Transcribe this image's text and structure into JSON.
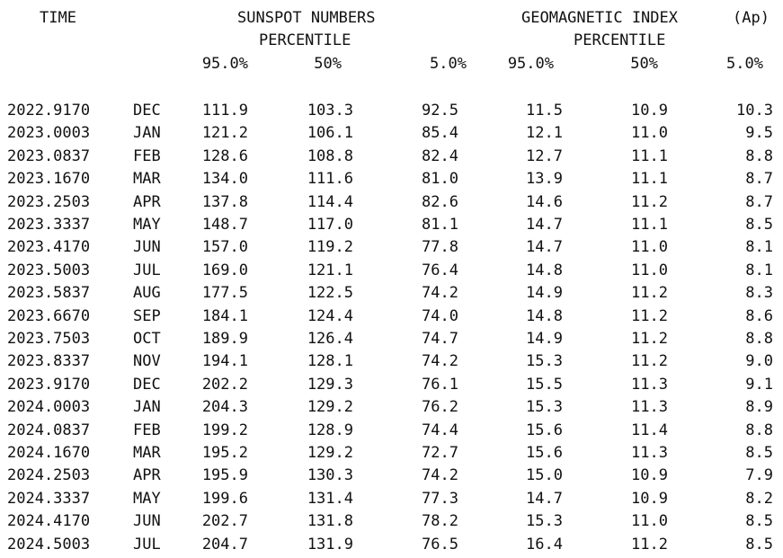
{
  "header": {
    "time": "TIME",
    "sunspot_title": "SUNSPOT NUMBERS",
    "sunspot_sub": "PERCENTILE",
    "geomag_title": "GEOMAGNETIC INDEX",
    "geomag_unit": "(Ap)",
    "geomag_sub": "PERCENTILE",
    "pct": [
      "95.0%",
      "50%",
      "5.0%",
      "95.0%",
      "50%",
      "5.0%"
    ]
  },
  "rows": [
    {
      "time": "2022.9170",
      "month": "DEC",
      "s95": "111.9",
      "s50": "103.3",
      "s5": "92.5",
      "g95": "11.5",
      "g50": "10.9",
      "g5": "10.3"
    },
    {
      "time": "2023.0003",
      "month": "JAN",
      "s95": "121.2",
      "s50": "106.1",
      "s5": "85.4",
      "g95": "12.1",
      "g50": "11.0",
      "g5": "9.5"
    },
    {
      "time": "2023.0837",
      "month": "FEB",
      "s95": "128.6",
      "s50": "108.8",
      "s5": "82.4",
      "g95": "12.7",
      "g50": "11.1",
      "g5": "8.8"
    },
    {
      "time": "2023.1670",
      "month": "MAR",
      "s95": "134.0",
      "s50": "111.6",
      "s5": "81.0",
      "g95": "13.9",
      "g50": "11.1",
      "g5": "8.7"
    },
    {
      "time": "2023.2503",
      "month": "APR",
      "s95": "137.8",
      "s50": "114.4",
      "s5": "82.6",
      "g95": "14.6",
      "g50": "11.2",
      "g5": "8.7"
    },
    {
      "time": "2023.3337",
      "month": "MAY",
      "s95": "148.7",
      "s50": "117.0",
      "s5": "81.1",
      "g95": "14.7",
      "g50": "11.1",
      "g5": "8.5"
    },
    {
      "time": "2023.4170",
      "month": "JUN",
      "s95": "157.0",
      "s50": "119.2",
      "s5": "77.8",
      "g95": "14.7",
      "g50": "11.0",
      "g5": "8.1"
    },
    {
      "time": "2023.5003",
      "month": "JUL",
      "s95": "169.0",
      "s50": "121.1",
      "s5": "76.4",
      "g95": "14.8",
      "g50": "11.0",
      "g5": "8.1"
    },
    {
      "time": "2023.5837",
      "month": "AUG",
      "s95": "177.5",
      "s50": "122.5",
      "s5": "74.2",
      "g95": "14.9",
      "g50": "11.2",
      "g5": "8.3"
    },
    {
      "time": "2023.6670",
      "month": "SEP",
      "s95": "184.1",
      "s50": "124.4",
      "s5": "74.0",
      "g95": "14.8",
      "g50": "11.2",
      "g5": "8.6"
    },
    {
      "time": "2023.7503",
      "month": "OCT",
      "s95": "189.9",
      "s50": "126.4",
      "s5": "74.7",
      "g95": "14.9",
      "g50": "11.2",
      "g5": "8.8"
    },
    {
      "time": "2023.8337",
      "month": "NOV",
      "s95": "194.1",
      "s50": "128.1",
      "s5": "74.2",
      "g95": "15.3",
      "g50": "11.2",
      "g5": "9.0"
    },
    {
      "time": "2023.9170",
      "month": "DEC",
      "s95": "202.2",
      "s50": "129.3",
      "s5": "76.1",
      "g95": "15.5",
      "g50": "11.3",
      "g5": "9.1"
    },
    {
      "time": "2024.0003",
      "month": "JAN",
      "s95": "204.3",
      "s50": "129.2",
      "s5": "76.2",
      "g95": "15.3",
      "g50": "11.3",
      "g5": "8.9"
    },
    {
      "time": "2024.0837",
      "month": "FEB",
      "s95": "199.2",
      "s50": "128.9",
      "s5": "74.4",
      "g95": "15.6",
      "g50": "11.4",
      "g5": "8.8"
    },
    {
      "time": "2024.1670",
      "month": "MAR",
      "s95": "195.2",
      "s50": "129.2",
      "s5": "72.7",
      "g95": "15.6",
      "g50": "11.3",
      "g5": "8.5"
    },
    {
      "time": "2024.2503",
      "month": "APR",
      "s95": "195.9",
      "s50": "130.3",
      "s5": "74.2",
      "g95": "15.0",
      "g50": "10.9",
      "g5": "7.9"
    },
    {
      "time": "2024.3337",
      "month": "MAY",
      "s95": "199.6",
      "s50": "131.4",
      "s5": "77.3",
      "g95": "14.7",
      "g50": "10.9",
      "g5": "8.2"
    },
    {
      "time": "2024.4170",
      "month": "JUN",
      "s95": "202.7",
      "s50": "131.8",
      "s5": "78.2",
      "g95": "15.3",
      "g50": "11.0",
      "g5": "8.5"
    },
    {
      "time": "2024.5003",
      "month": "JUL",
      "s95": "204.7",
      "s50": "131.9",
      "s5": "76.5",
      "g95": "16.4",
      "g50": "11.2",
      "g5": "8.5"
    }
  ]
}
